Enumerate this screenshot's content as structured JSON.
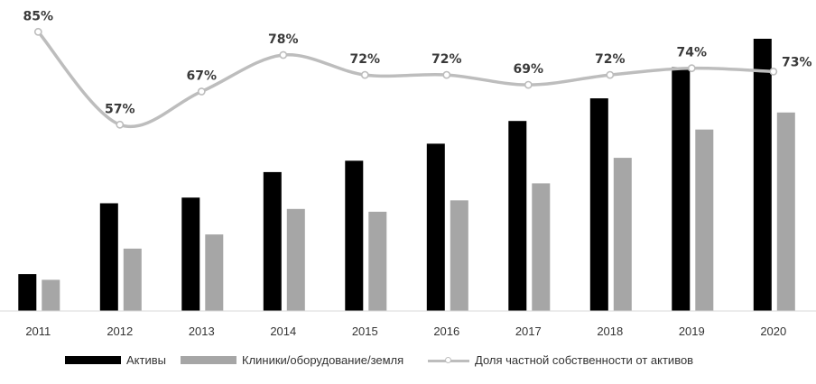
{
  "chart_data": {
    "type": "bar",
    "categories": [
      "2011",
      "2012",
      "2013",
      "2014",
      "2015",
      "2016",
      "2017",
      "2018",
      "2019",
      "2020"
    ],
    "series": [
      {
        "name": "Активы",
        "type": "bar",
        "color": "#000000",
        "values": [
          1.3,
          3.8,
          4.0,
          4.9,
          5.3,
          5.9,
          6.7,
          7.5,
          8.6,
          9.6
        ]
      },
      {
        "name": "Клиники/оборудование/земля",
        "type": "bar",
        "color": "#a6a6a6",
        "values": [
          1.1,
          2.2,
          2.7,
          3.6,
          3.5,
          3.9,
          4.5,
          5.4,
          6.4,
          7.0
        ]
      },
      {
        "name": "Доля частной собственности от активов",
        "type": "line",
        "color": "#bdbdbd",
        "values": [
          85,
          57,
          67,
          78,
          72,
          72,
          69,
          72,
          74,
          73
        ],
        "labels": [
          "85%",
          "57%",
          "67%",
          "78%",
          "72%",
          "72%",
          "69%",
          "72%",
          "74%",
          "73%"
        ]
      }
    ],
    "legend": {
      "position": "bottom",
      "items": [
        "Активы",
        "Клиники/оборудование/земля",
        "Доля частной собственности от активов"
      ]
    }
  }
}
